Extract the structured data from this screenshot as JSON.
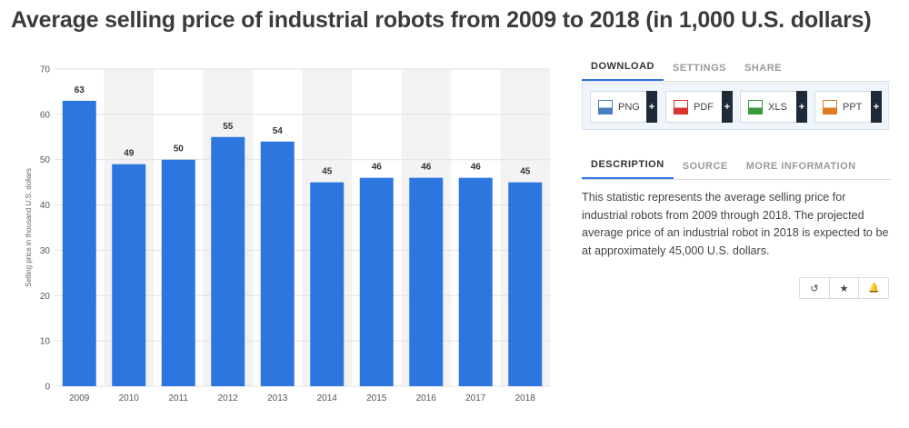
{
  "title": "Average selling price of industrial robots from 2009 to 2018 (in 1,000 U.S. dollars)",
  "download_tabs": [
    {
      "label": "DOWNLOAD"
    },
    {
      "label": "SETTINGS"
    },
    {
      "label": "SHARE"
    }
  ],
  "download_buttons": [
    {
      "label": "PNG",
      "plus": "+",
      "icon": "png-file-icon",
      "color": "#4a7fbf"
    },
    {
      "label": "PDF",
      "plus": "+",
      "icon": "pdf-file-icon",
      "color": "#d9342b"
    },
    {
      "label": "XLS",
      "plus": "+",
      "icon": "xls-file-icon",
      "color": "#3a9a3a"
    },
    {
      "label": "PPT",
      "plus": "+",
      "icon": "ppt-file-icon",
      "color": "#e07b22"
    }
  ],
  "info_tabs": [
    {
      "label": "DESCRIPTION"
    },
    {
      "label": "SOURCE"
    },
    {
      "label": "MORE INFORMATION"
    }
  ],
  "description": "This statistic represents the average selling price for industrial robots from 2009 through 2018. The projected average price of an industrial robot in 2018 is expected to be at approximately 45,000 U.S. dollars.",
  "actions": [
    {
      "icon": "history-icon",
      "glyph": "↺"
    },
    {
      "icon": "star-icon",
      "glyph": "★"
    },
    {
      "icon": "bell-icon",
      "glyph": "🔔"
    }
  ],
  "colors": {
    "bar": "#2d76e0",
    "accent": "#2d76e0"
  },
  "chart_data": {
    "type": "bar",
    "categories": [
      "2009",
      "2010",
      "2011",
      "2012",
      "2013",
      "2014",
      "2015",
      "2016",
      "2017",
      "2018"
    ],
    "values": [
      63,
      49,
      50,
      55,
      54,
      45,
      46,
      46,
      46,
      45
    ],
    "ylabel": "Selling price in thousand U.S. dollars",
    "ylim": [
      0,
      70
    ],
    "yticks": [
      0,
      10,
      20,
      30,
      40,
      50,
      60,
      70
    ],
    "grid": true,
    "data_labels": true
  }
}
